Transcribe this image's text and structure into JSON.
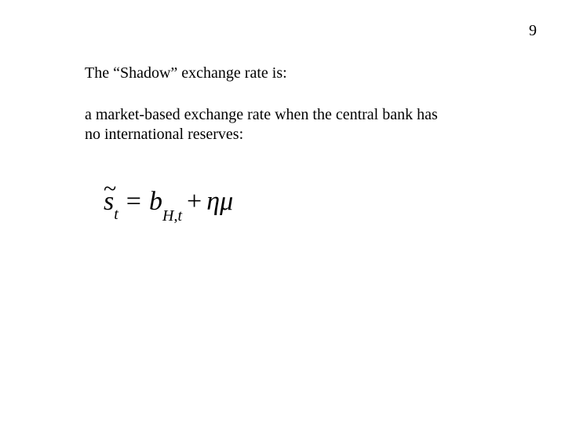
{
  "page": {
    "number": "9",
    "background_color": "#ffffff",
    "text_color": "#000000",
    "font_family": "Times New Roman"
  },
  "content": {
    "heading": "The “Shadow”  exchange rate is:",
    "body": "a market-based exchange rate when the central bank has no international reserves:",
    "heading_fontsize": 20,
    "body_fontsize": 20
  },
  "formula": {
    "plain": "s̃_t = b_{H,t} + ημ",
    "fontsize": 34,
    "parts": {
      "tilde": "~",
      "s": "s",
      "t": "t",
      "eq": "=",
      "b": "b",
      "H": "H",
      "comma": ",",
      "t2": "t",
      "plus": "+",
      "eta": "η",
      "mu": "μ"
    }
  }
}
